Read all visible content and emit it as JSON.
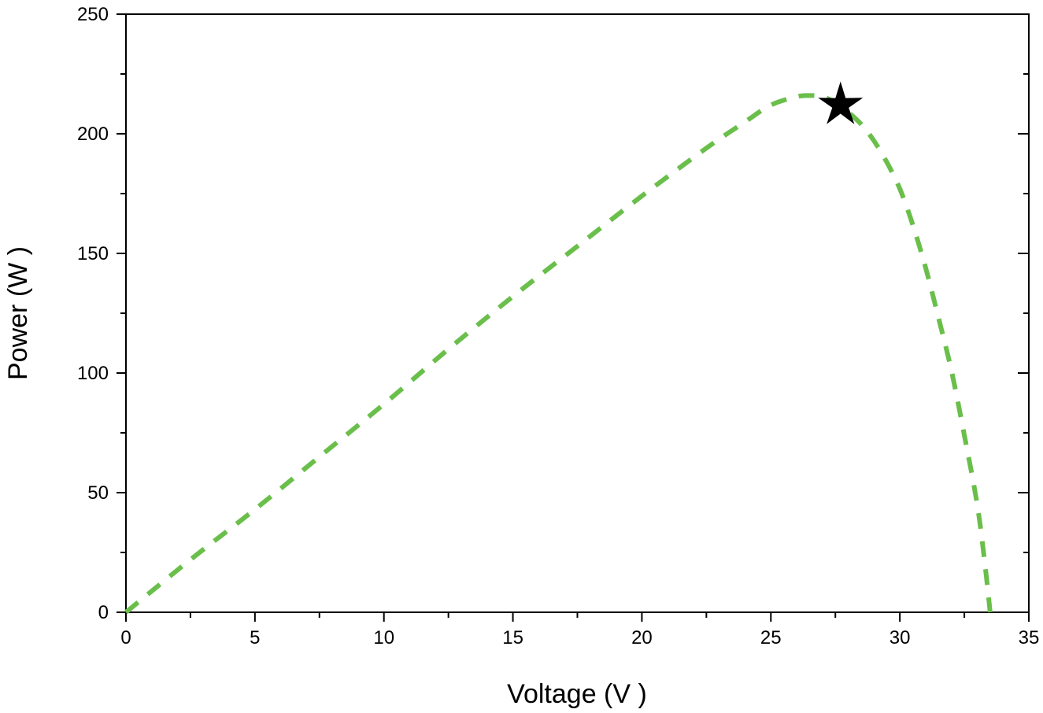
{
  "chart_data": {
    "type": "line",
    "title": "",
    "xlabel": "Voltage (V )",
    "ylabel": "Power (W )",
    "xlim": [
      0,
      35
    ],
    "ylim": [
      0,
      250
    ],
    "xticks": [
      "0",
      "5",
      "10",
      "15",
      "20",
      "25",
      "30",
      "35"
    ],
    "yticks": [
      "0",
      "50",
      "100",
      "150",
      "200",
      "250"
    ],
    "grid": false,
    "legend": "none",
    "series": [
      {
        "color": "#6abf4b",
        "style": "dashed",
        "x": [
          0,
          2.5,
          5,
          7.5,
          10,
          12.5,
          15,
          17.5,
          20,
          22.5,
          24,
          25,
          26,
          26.5,
          27,
          27.5,
          28,
          28.5,
          29,
          29.5,
          30,
          30.5,
          31,
          31.5,
          32,
          32.5,
          33,
          33.3,
          33.5
        ],
        "y": [
          0,
          22,
          43,
          65,
          87,
          110,
          132,
          153,
          174,
          194,
          205,
          212,
          215.5,
          216,
          215.5,
          213,
          209,
          204,
          197,
          188,
          177,
          162,
          144,
          123,
          101,
          74,
          45,
          20,
          0
        ]
      }
    ],
    "markers": [
      {
        "label": "",
        "shape": "star",
        "color": "#000000",
        "x": 27.7,
        "y": 212
      }
    ]
  }
}
